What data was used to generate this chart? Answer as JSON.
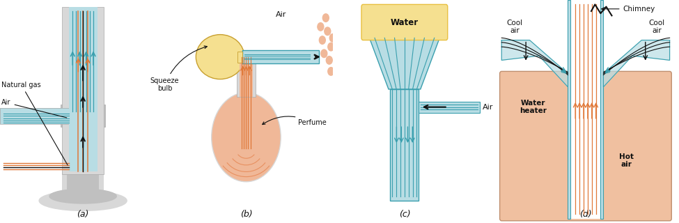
{
  "bg_color": "#ffffff",
  "teal": "#3a9fae",
  "teal_light": "#b8dde4",
  "teal_mid": "#5ab8c8",
  "orange": "#e07838",
  "orange_light": "#f0b090",
  "gray_dark": "#aaaaaa",
  "gray_light": "#d8d8d8",
  "gray_mid": "#c0c0c0",
  "yellow": "#e8c040",
  "yellow_light": "#f5e090",
  "peach": "#e89060",
  "peach_light": "#f0b898",
  "peach_bg": "#f0c0a0",
  "mint": "#88c8b8",
  "black": "#111111",
  "panel_letters": [
    "(a)",
    "(b)",
    "(c)",
    "(d)"
  ]
}
